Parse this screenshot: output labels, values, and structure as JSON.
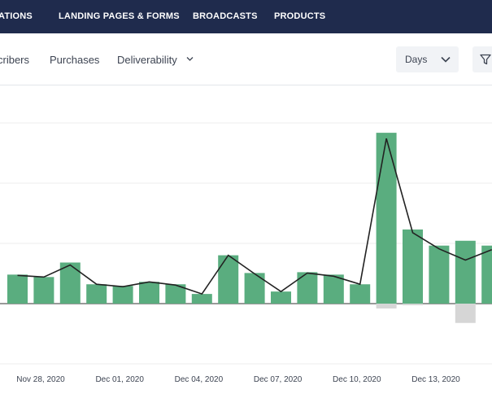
{
  "topnav": {
    "items": [
      {
        "label": "ATIONS"
      },
      {
        "label": "LANDING PAGES & FORMS"
      },
      {
        "label": "BROADCASTS"
      },
      {
        "label": "PRODUCTS"
      }
    ]
  },
  "subnav": {
    "tabs": [
      {
        "label": "cribers"
      },
      {
        "label": "Purchases"
      },
      {
        "label": "Deliverability"
      }
    ],
    "period_select": {
      "value": "Days"
    },
    "icons": {
      "dropdown": "chevron-down-icon",
      "filter": "filter-icon"
    }
  },
  "colors": {
    "nav_bg": "#1f2b4d",
    "bar_positive": "#5aad7f",
    "bar_negative": "#d6d6d6",
    "trend_line": "#222222",
    "grid": "#eeeeee"
  },
  "chart_data": {
    "type": "bar",
    "grid": true,
    "x_tick_labels": [
      "Nov 28, 2020",
      "Dec 01, 2020",
      "Dec 04, 2020",
      "Dec 07, 2020",
      "Dec 10, 2020",
      "Dec 13, 2020"
    ],
    "series": [
      {
        "values": [
          36,
          33,
          51,
          24,
          22,
          27,
          24,
          12,
          60,
          38,
          15,
          39,
          36,
          24,
          212,
          92,
          72,
          78,
          72
        ]
      },
      {
        "values": [
          0,
          0,
          0,
          0,
          0,
          0,
          0,
          0,
          0,
          0,
          0,
          0,
          0,
          0,
          -6,
          -2,
          0,
          -24,
          0
        ]
      },
      {
        "values": [
          35,
          33,
          48,
          24,
          21,
          27,
          23,
          12,
          60,
          37,
          15,
          38,
          34,
          24,
          205,
          88,
          68,
          54,
          67
        ]
      }
    ]
  }
}
